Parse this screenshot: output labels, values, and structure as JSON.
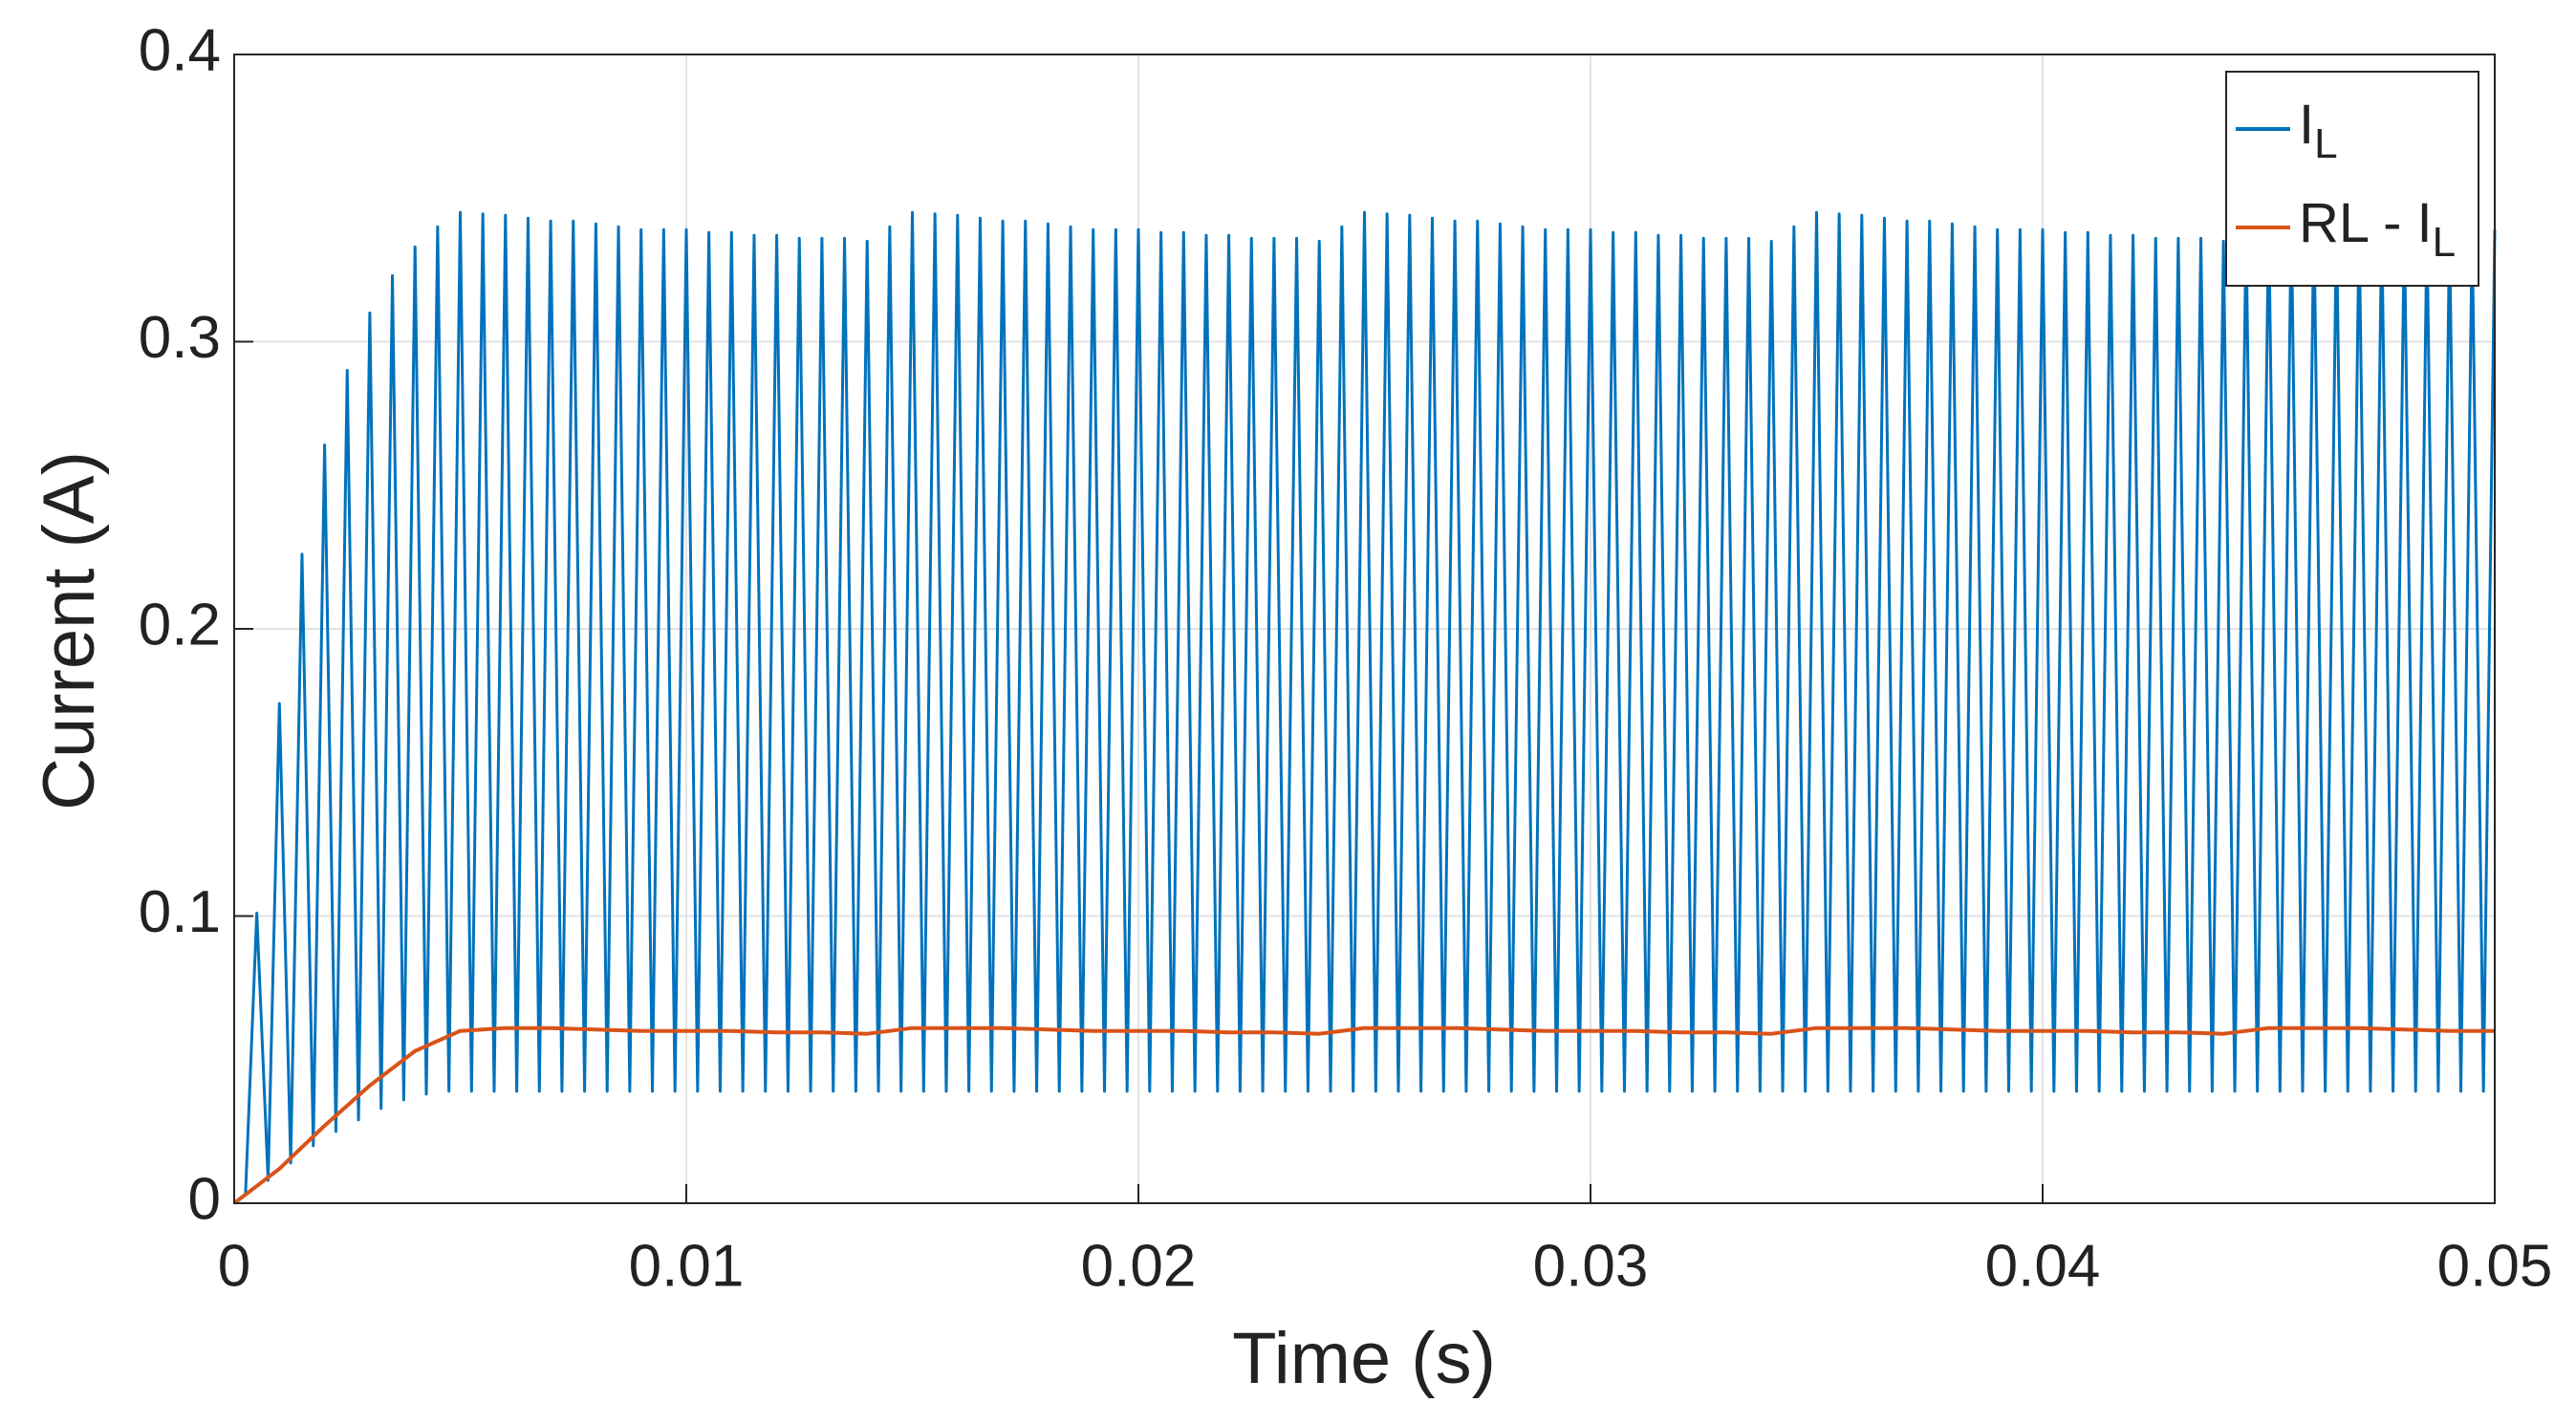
{
  "chart_data": {
    "type": "line",
    "xlabel": "Time (s)",
    "ylabel": "Current (A)",
    "xlim": [
      0,
      0.05
    ],
    "ylim": [
      0,
      0.4
    ],
    "xticks": [
      0,
      0.01,
      0.02,
      0.03,
      0.04,
      0.05
    ],
    "yticks": [
      0,
      0.1,
      0.2,
      0.3,
      0.4
    ],
    "grid": true,
    "legend": "upper right",
    "series": [
      {
        "name": "I_L",
        "color": "#0072bd",
        "x": [
          0,
          0.00025,
          0.0005,
          0.00075,
          0.001,
          0.00125,
          0.0015,
          0.00175,
          0.002,
          0.00225,
          0.0025,
          0.00275,
          0.003,
          0.00325,
          0.0035,
          0.00375,
          0.004,
          0.00425,
          0.0045,
          0.00475,
          0.005,
          0.00525,
          0.0055,
          0.00575,
          0.006,
          0.00625,
          0.0065,
          0.00675,
          0.007,
          0.00725,
          0.0075,
          0.00775,
          0.008,
          0.00825,
          0.0085,
          0.00875,
          0.009,
          0.00925,
          0.0095,
          0.00975,
          0.01,
          0.01025,
          0.0105,
          0.01075,
          0.011,
          0.01125,
          0.0115,
          0.01175,
          0.012,
          0.01225,
          0.0125,
          0.01275,
          0.013,
          0.01325,
          0.0135,
          0.01375,
          0.014,
          0.01425,
          0.0145,
          0.01475,
          0.015,
          0.01525,
          0.0155,
          0.01575,
          0.016,
          0.01625,
          0.0165,
          0.01675,
          0.017,
          0.01725,
          0.0175,
          0.01775,
          0.018,
          0.01825,
          0.0185,
          0.01875,
          0.019,
          0.01925,
          0.0195,
          0.01975,
          0.02,
          0.02025,
          0.0205,
          0.02075,
          0.021,
          0.02125,
          0.0215,
          0.02175,
          0.022,
          0.02225,
          0.0225,
          0.02275,
          0.023,
          0.02325,
          0.0235,
          0.02375,
          0.024,
          0.02425,
          0.0245,
          0.02475,
          0.025,
          0.02525,
          0.0255,
          0.02575,
          0.026,
          0.02625,
          0.0265,
          0.02675,
          0.027,
          0.02725,
          0.0275,
          0.02775,
          0.028,
          0.02825,
          0.0285,
          0.02875,
          0.029,
          0.02925,
          0.0295,
          0.02975,
          0.03,
          0.03025,
          0.0305,
          0.03075,
          0.031,
          0.03125,
          0.0315,
          0.03175,
          0.032,
          0.03225,
          0.0325,
          0.03275,
          0.033,
          0.03325,
          0.0335,
          0.03375,
          0.034,
          0.03425,
          0.0345,
          0.03475,
          0.035,
          0.03525,
          0.0355,
          0.03575,
          0.036,
          0.03625,
          0.0365,
          0.03675,
          0.037,
          0.03725,
          0.0375,
          0.03775,
          0.038,
          0.03825,
          0.0385,
          0.03875,
          0.039,
          0.03925,
          0.0395,
          0.03975,
          0.04,
          0.04025,
          0.0405,
          0.04075,
          0.041,
          0.04125,
          0.0415,
          0.04175,
          0.042,
          0.04225,
          0.0425,
          0.04275,
          0.043,
          0.04325,
          0.0435,
          0.04375,
          0.044,
          0.04425,
          0.0445,
          0.04475,
          0.045,
          0.04525,
          0.0455,
          0.04575,
          0.046,
          0.04625,
          0.0465,
          0.04675,
          0.047,
          0.04725,
          0.0475,
          0.04775,
          0.048,
          0.04825,
          0.0485,
          0.04875,
          0.049,
          0.04925,
          0.0495,
          0.04975,
          0.05
        ],
        "values": [
          0,
          0.003,
          0.101,
          0.008,
          0.174,
          0.014,
          0.226,
          0.02,
          0.264,
          0.025,
          0.29,
          0.029,
          0.31,
          0.033,
          0.323,
          0.036,
          0.333,
          0.038,
          0.34,
          0.039,
          0.345,
          0.039,
          0.3445,
          0.039,
          0.344,
          0.039,
          0.343,
          0.039,
          0.342,
          0.039,
          0.342,
          0.039,
          0.341,
          0.039,
          0.34,
          0.039,
          0.339,
          0.039,
          0.339,
          0.039,
          0.339,
          0.039,
          0.338,
          0.039,
          0.338,
          0.039,
          0.337,
          0.039,
          0.337,
          0.039,
          0.336,
          0.039,
          0.336,
          0.039,
          0.336,
          0.039,
          0.335,
          0.039,
          0.34,
          0.039,
          0.345,
          0.039,
          0.3445,
          0.039,
          0.344,
          0.039,
          0.343,
          0.039,
          0.342,
          0.039,
          0.342,
          0.039,
          0.341,
          0.039,
          0.34,
          0.039,
          0.339,
          0.039,
          0.339,
          0.039,
          0.339,
          0.039,
          0.338,
          0.039,
          0.338,
          0.039,
          0.337,
          0.039,
          0.337,
          0.039,
          0.336,
          0.039,
          0.336,
          0.039,
          0.336,
          0.039,
          0.335,
          0.039,
          0.34,
          0.039,
          0.345,
          0.039,
          0.3445,
          0.039,
          0.344,
          0.039,
          0.343,
          0.039,
          0.342,
          0.039,
          0.342,
          0.039,
          0.341,
          0.039,
          0.34,
          0.039,
          0.339,
          0.039,
          0.339,
          0.039,
          0.339,
          0.039,
          0.338,
          0.039,
          0.338,
          0.039,
          0.337,
          0.039,
          0.337,
          0.039,
          0.336,
          0.039,
          0.336,
          0.039,
          0.336,
          0.039,
          0.335,
          0.039,
          0.34,
          0.039,
          0.345,
          0.039,
          0.3445,
          0.039,
          0.344,
          0.039,
          0.343,
          0.039,
          0.342,
          0.039,
          0.342,
          0.039,
          0.341,
          0.039,
          0.34,
          0.039,
          0.339,
          0.039,
          0.339,
          0.039,
          0.339,
          0.039,
          0.338,
          0.039,
          0.338,
          0.039,
          0.337,
          0.039,
          0.337,
          0.039,
          0.336,
          0.039,
          0.336,
          0.039,
          0.336,
          0.039,
          0.335,
          0.039,
          0.34,
          0.039,
          0.345,
          0.039,
          0.3445,
          0.039,
          0.344,
          0.039,
          0.343,
          0.039,
          0.342,
          0.039,
          0.342,
          0.039,
          0.341,
          0.039,
          0.34,
          0.039,
          0.339,
          0.039,
          0.339,
          0.039,
          0.339
        ]
      },
      {
        "name": "RL - I_L",
        "color": "#d95319",
        "x": [
          0,
          0.001,
          0.002,
          0.003,
          0.004,
          0.005,
          0.006,
          0.007,
          0.008,
          0.009,
          0.01,
          0.011,
          0.012,
          0.013,
          0.014,
          0.015,
          0.016,
          0.017,
          0.018,
          0.019,
          0.02,
          0.021,
          0.022,
          0.023,
          0.024,
          0.025,
          0.026,
          0.027,
          0.028,
          0.029,
          0.03,
          0.031,
          0.032,
          0.033,
          0.034,
          0.035,
          0.036,
          0.037,
          0.038,
          0.039,
          0.04,
          0.041,
          0.042,
          0.043,
          0.044,
          0.045,
          0.046,
          0.047,
          0.048,
          0.049,
          0.05
        ],
        "values": [
          0,
          0.012,
          0.027,
          0.041,
          0.053,
          0.06,
          0.061,
          0.061,
          0.0605,
          0.06,
          0.06,
          0.06,
          0.0595,
          0.0595,
          0.059,
          0.061,
          0.061,
          0.061,
          0.0605,
          0.06,
          0.06,
          0.06,
          0.0595,
          0.0595,
          0.059,
          0.061,
          0.061,
          0.061,
          0.0605,
          0.06,
          0.06,
          0.06,
          0.0595,
          0.0595,
          0.059,
          0.061,
          0.061,
          0.061,
          0.0605,
          0.06,
          0.06,
          0.06,
          0.0595,
          0.0595,
          0.059,
          0.061,
          0.061,
          0.061,
          0.0605,
          0.06,
          0.06
        ]
      }
    ]
  }
}
